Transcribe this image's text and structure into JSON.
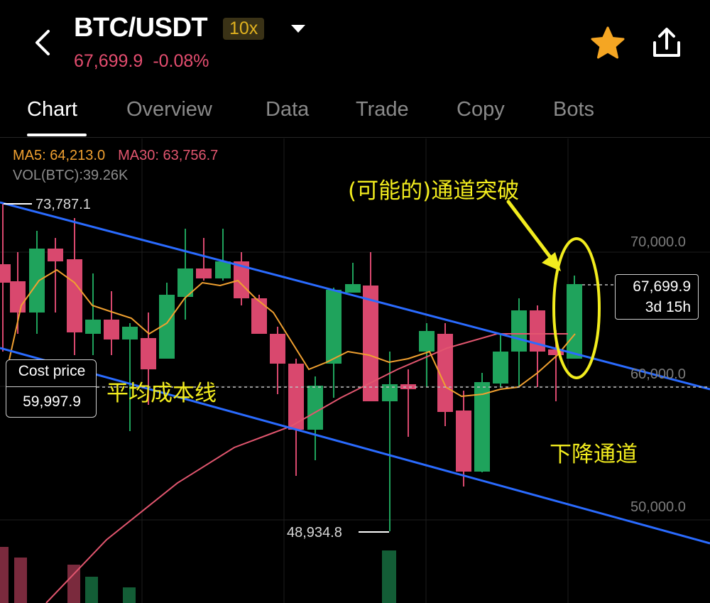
{
  "header": {
    "pair": "BTC/USDT",
    "leverage": "10x",
    "last_price": "67,699.9",
    "change_pct": "-0.08%",
    "icons": {
      "back": "chevron-left-icon",
      "dropdown": "caret-down-icon",
      "favorite": "star-icon",
      "share": "share-icon"
    },
    "favorite_color": "#f5a623"
  },
  "tabs": [
    "Chart",
    "Overview",
    "Data",
    "Trade",
    "Copy",
    "Bots"
  ],
  "active_tab": "Chart",
  "indicators": {
    "ma5": "MA5: 64,213.0",
    "ma30": "MA30: 63,756.7",
    "vol": "VOL(BTC):39.26K"
  },
  "price_axis": {
    "p70k": "70,000.0",
    "p60k": "60,000.0",
    "p50k": "50,000.0"
  },
  "markers": {
    "high": "73,787.1",
    "low": "48,934.8"
  },
  "cost_price": {
    "label": "Cost price",
    "value": "59,997.9"
  },
  "current": {
    "price": "67,699.9",
    "countdown": "3d 15h"
  },
  "annotations": {
    "breakout": "(可能的)通道突破",
    "avg_cost": "平均成本线",
    "channel": "下降通道"
  },
  "colors": {
    "up": "#1fa35c",
    "down": "#d9486e",
    "ma5": "#f0a030",
    "ma30": "#e2566f",
    "channel": "#2a6bff",
    "annotation": "#f2ec1e"
  }
}
